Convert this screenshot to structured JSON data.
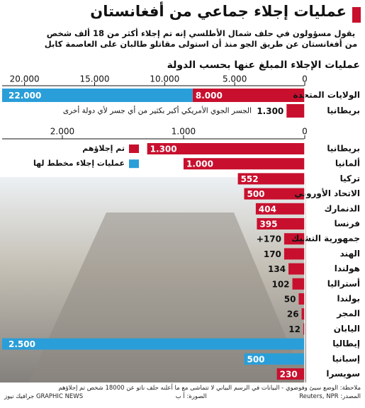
{
  "header": {
    "title": "عمليات إجلاء جماعي من أفغانستان",
    "subtitle": "يقول مسؤولون في حلف شمال الأطلسي إنه تم إجلاء أكثر من 18 ألف شخص من أفغانستان عن طريق الجو منذ أن استولى مقاتلو طالبان على العاصمة كابل"
  },
  "chart_data": [
    {
      "type": "bar",
      "orientation": "horizontal",
      "title": "عمليات الإجلاء المبلغ عنها بحسب الدولة",
      "categories": [
        "الولايات المتحدة",
        "بريطانيا"
      ],
      "series": [
        {
          "color": "#c8102e",
          "values": [
            8000,
            1300
          ],
          "value_labels": [
            "8.000",
            "1.300"
          ]
        },
        {
          "color": "#2a9ed8",
          "values": [
            22000,
            null
          ],
          "value_labels": [
            "22.000",
            null
          ]
        }
      ],
      "xlim": [
        0,
        21500
      ],
      "xticks": [
        0,
        {
          "value": 5000,
          "label": "5.000"
        },
        {
          "value": 10000,
          "label": "10.000"
        },
        {
          "value": 15000,
          "label": "15.000"
        },
        {
          "value": 20000,
          "label": "20.000"
        }
      ],
      "annotation": "الجسر الجوي الأمريكي أكبر بكثير من أي جسر لأي دولة أخرى"
    },
    {
      "type": "bar",
      "orientation": "horizontal",
      "categories": [
        "بريطانيا",
        "ألمانيا",
        "تركيا",
        "الاتحاد الأوروبي",
        "الدنمارك",
        "فرنسا",
        "جمهورية التشيك",
        "الهند",
        "هولندا",
        "أستراليا",
        "بولندا",
        "المجر",
        "اليابان",
        "إيطاليا",
        "إسبانيا",
        "سويسرا"
      ],
      "series": [
        {
          "name": "تم إجلاؤهم",
          "color": "#c8102e",
          "values": [
            1300,
            1000,
            552,
            500,
            404,
            395,
            170,
            170,
            134,
            102,
            50,
            26,
            12,
            null,
            null,
            230
          ],
          "value_labels": [
            "1.300",
            "1.000",
            "552",
            "500",
            "404",
            "395",
            "+170",
            "170",
            "134",
            "102",
            "50",
            "26",
            "12",
            null,
            null,
            "230"
          ]
        },
        {
          "name": "عمليات إجلاء مخطط لها",
          "color": "#2a9ed8",
          "values": [
            null,
            null,
            null,
            null,
            null,
            null,
            null,
            null,
            null,
            null,
            null,
            null,
            null,
            2500,
            500,
            null
          ],
          "value_labels": [
            null,
            null,
            null,
            null,
            null,
            null,
            null,
            null,
            null,
            null,
            null,
            null,
            null,
            "2.500",
            "500",
            null
          ]
        }
      ],
      "xlim": [
        0,
        2485
      ],
      "xticks": [
        0,
        {
          "value": 1000,
          "label": "1.000"
        },
        {
          "value": 2000,
          "label": "2.000"
        }
      ],
      "legend": "top-left"
    }
  ],
  "footer": {
    "note": "ملاحظة: الوضع سيئ وفوضوي - البيانات في الرسم البياني لا تتماشى مع ما أعلنه حلف ناتو عن 18000 شخص تم إجلاؤهم",
    "source": "المصدر: Reuters, NPR",
    "photo": "الصورة: أ ب",
    "credit": "GRAPHIC NEWS جرافيك نيوز"
  }
}
